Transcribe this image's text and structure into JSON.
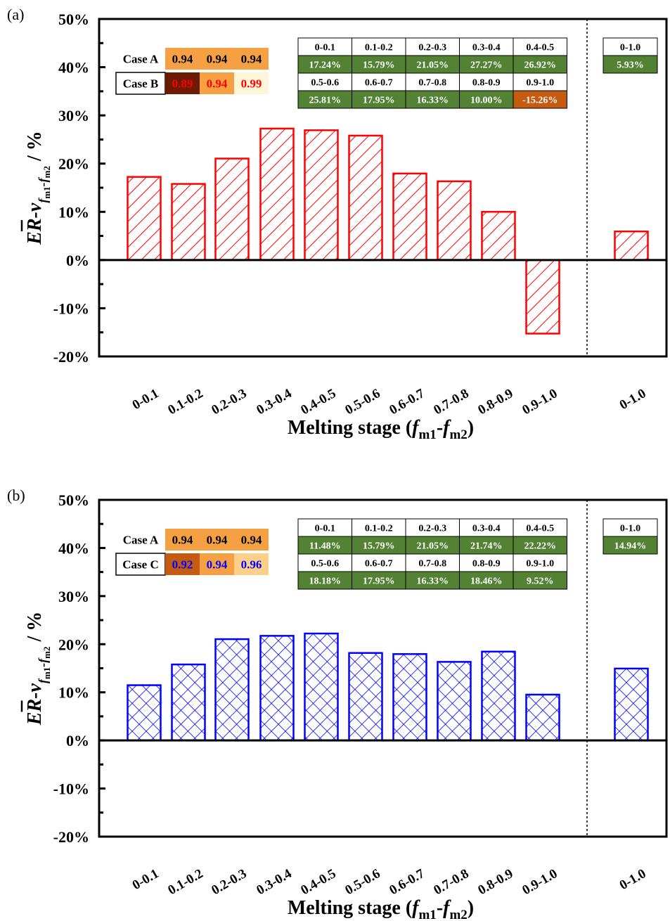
{
  "chart_data": [
    {
      "type": "bar",
      "panel_label": "(a)",
      "categories": [
        "0-0.1",
        "0.1-0.2",
        "0.2-0.3",
        "0.3-0.4",
        "0.4-0.5",
        "0.5-0.6",
        "0.6-0.7",
        "0.7-0.8",
        "0.8-0.9",
        "0.9-1.0",
        "0-1.0"
      ],
      "series": [
        {
          "values": [
            17.24,
            15.79,
            21.05,
            27.27,
            26.92,
            25.81,
            17.95,
            16.33,
            10.0,
            -15.26,
            5.93
          ],
          "color": "#ff0000",
          "pattern": "diagonal-hatch"
        }
      ],
      "ylim": [
        -20,
        50
      ],
      "yticks": [
        "-20%",
        "-10%",
        "0%",
        "10%",
        "20%",
        "30%",
        "40%",
        "50%"
      ],
      "xlabel_parts": [
        "Melting stage (",
        "f",
        "m1",
        "-",
        "f",
        "m2",
        ")"
      ],
      "ylabel_parts": [
        "ER-",
        "v",
        "f",
        "m1",
        "-f",
        "m2",
        " / %"
      ],
      "case_table": {
        "rows": [
          {
            "label": "Case A",
            "values": [
              "0.94",
              "0.94",
              "0.94"
            ],
            "bg": [
              "#f5a043",
              "#f5a043",
              "#f5a043"
            ],
            "fg": [
              "#000000",
              "#000000",
              "#000000"
            ],
            "label_box": false
          },
          {
            "label": "Case B",
            "values": [
              "0.89",
              "0.94",
              "0.99"
            ],
            "bg": [
              "#6b1a04",
              "#f5a043",
              "#fef6d6"
            ],
            "fg": [
              "#ff0000",
              "#ff0000",
              "#ff0000"
            ],
            "label_box": true
          }
        ]
      },
      "pct_table": {
        "header1": [
          "0-0.1",
          "0.1-0.2",
          "0.2-0.3",
          "0.3-0.4",
          "0.4-0.5"
        ],
        "values1": [
          "17.24%",
          "15.79%",
          "21.05%",
          "27.27%",
          "26.92%"
        ],
        "header2": [
          "0.5-0.6",
          "0.6-0.7",
          "0.7-0.8",
          "0.8-0.9",
          "0.9-1.0"
        ],
        "values2": [
          "25.81%",
          "17.95%",
          "16.33%",
          "10.00%",
          "-15.26%"
        ],
        "total_header": "0-1.0",
        "total_value": "5.93%",
        "positive_color": "#548235",
        "negative_color": "#c55a11"
      }
    },
    {
      "type": "bar",
      "panel_label": "(b)",
      "categories": [
        "0-0.1",
        "0.1-0.2",
        "0.2-0.3",
        "0.3-0.4",
        "0.4-0.5",
        "0.5-0.6",
        "0.6-0.7",
        "0.7-0.8",
        "0.8-0.9",
        "0.9-1.0",
        "0-1.0"
      ],
      "series": [
        {
          "values": [
            11.48,
            15.79,
            21.05,
            21.74,
            22.22,
            18.18,
            17.95,
            16.33,
            18.46,
            9.52,
            14.94
          ],
          "color": "#0000ff",
          "pattern": "cross-hatch"
        }
      ],
      "ylim": [
        -20,
        50
      ],
      "yticks": [
        "-20%",
        "-10%",
        "0%",
        "10%",
        "20%",
        "30%",
        "40%",
        "50%"
      ],
      "xlabel_parts": [
        "Melting stage (",
        "f",
        "m1",
        "-",
        "f",
        "m2",
        ")"
      ],
      "ylabel_parts": [
        "ER-",
        "v",
        "f",
        "m1",
        "-f",
        "m2",
        " / %"
      ],
      "case_table": {
        "rows": [
          {
            "label": "Case A",
            "values": [
              "0.94",
              "0.94",
              "0.94"
            ],
            "bg": [
              "#f5a043",
              "#f5a043",
              "#f5a043"
            ],
            "fg": [
              "#000000",
              "#000000",
              "#000000"
            ],
            "label_box": false
          },
          {
            "label": "Case C",
            "values": [
              "0.92",
              "0.94",
              "0.96"
            ],
            "bg": [
              "#c55a11",
              "#f5a043",
              "#fdd08a"
            ],
            "fg": [
              "#0000ff",
              "#0000ff",
              "#0000ff"
            ],
            "label_box": true
          }
        ]
      },
      "pct_table": {
        "header1": [
          "0-0.1",
          "0.1-0.2",
          "0.2-0.3",
          "0.3-0.4",
          "0.4-0.5"
        ],
        "values1": [
          "11.48%",
          "15.79%",
          "21.05%",
          "21.74%",
          "22.22%"
        ],
        "header2": [
          "0.5-0.6",
          "0.6-0.7",
          "0.7-0.8",
          "0.8-0.9",
          "0.9-1.0"
        ],
        "values2": [
          "18.18%",
          "17.95%",
          "16.33%",
          "18.46%",
          "9.52%"
        ],
        "total_header": "0-1.0",
        "total_value": "14.94%",
        "positive_color": "#548235",
        "negative_color": "#c55a11"
      }
    }
  ]
}
